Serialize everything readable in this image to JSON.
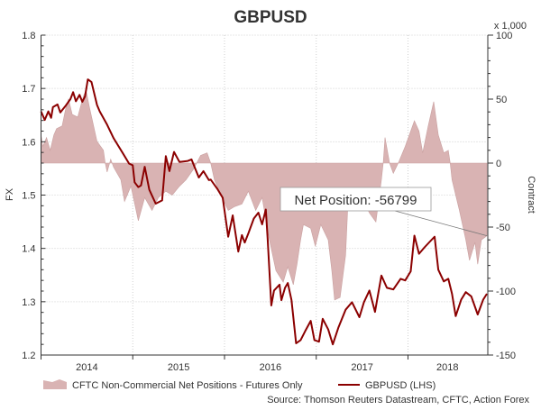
{
  "chart_data": {
    "type": "line",
    "title": "GBPUSD",
    "ylabel": "FX",
    "y2label": "Contract",
    "y2_unit": "x 1,000",
    "xlim": [
      2014.0,
      2018.87
    ],
    "ylim": [
      1.2,
      1.8
    ],
    "y2lim": [
      -150,
      100
    ],
    "x_tick_labels": [
      "2014",
      "2015",
      "2016",
      "2017",
      "2018"
    ],
    "x_tick_positions": [
      2014.5,
      2015.5,
      2016.5,
      2017.5,
      2018.43
    ],
    "x_gridlines": [
      2015,
      2016,
      2017,
      2018
    ],
    "y_ticks": [
      1.2,
      1.3,
      1.4,
      1.5,
      1.6,
      1.7,
      1.8
    ],
    "y_tick_labels": [
      "1.2",
      "1.3",
      "1.4",
      "1.5",
      "1.6",
      "1.7",
      "1.8"
    ],
    "y2_ticks": [
      -150,
      -100,
      -50,
      0,
      50,
      100
    ],
    "y2_tick_labels": [
      "-150",
      "-100",
      "-50",
      "0",
      "50",
      "100"
    ],
    "grid": true,
    "legend_placement": "bottom",
    "series": [
      {
        "name": "CFTC Non-Commercial Net Positions - Futures Only",
        "type": "area",
        "axis": "right",
        "color": "#d9b3b3",
        "points": [
          [
            2014.0,
            22
          ],
          [
            2014.02,
            13
          ],
          [
            2014.06,
            20
          ],
          [
            2014.1,
            10
          ],
          [
            2014.14,
            22
          ],
          [
            2014.17,
            27
          ],
          [
            2014.23,
            29
          ],
          [
            2014.27,
            43
          ],
          [
            2014.3,
            50
          ],
          [
            2014.34,
            38
          ],
          [
            2014.4,
            36
          ],
          [
            2014.46,
            52
          ],
          [
            2014.49,
            57
          ],
          [
            2014.53,
            43
          ],
          [
            2014.61,
            17
          ],
          [
            2014.68,
            10
          ],
          [
            2014.7,
            0
          ],
          [
            2014.72,
            -7
          ],
          [
            2014.76,
            3
          ],
          [
            2014.79,
            -3
          ],
          [
            2014.87,
            -13
          ],
          [
            2014.91,
            -30
          ],
          [
            2014.98,
            -18
          ],
          [
            2015.06,
            -45
          ],
          [
            2015.13,
            -27
          ],
          [
            2015.21,
            -37
          ],
          [
            2015.28,
            -27
          ],
          [
            2015.36,
            -22
          ],
          [
            2015.43,
            -25
          ],
          [
            2015.51,
            -18
          ],
          [
            2015.58,
            -13
          ],
          [
            2015.66,
            -5
          ],
          [
            2015.74,
            6
          ],
          [
            2015.81,
            8
          ],
          [
            2015.85,
            0
          ],
          [
            2015.89,
            -13
          ],
          [
            2015.96,
            -25
          ],
          [
            2016.04,
            -37
          ],
          [
            2016.11,
            -34
          ],
          [
            2016.19,
            -32
          ],
          [
            2016.26,
            -22
          ],
          [
            2016.34,
            -37
          ],
          [
            2016.41,
            -27
          ],
          [
            2016.49,
            -60
          ],
          [
            2016.56,
            -84
          ],
          [
            2016.64,
            -93
          ],
          [
            2016.69,
            -81
          ],
          [
            2016.75,
            -95
          ],
          [
            2016.79,
            -79
          ],
          [
            2016.83,
            -60
          ],
          [
            2016.86,
            -48
          ],
          [
            2016.94,
            -51
          ],
          [
            2016.99,
            -65
          ],
          [
            2017.05,
            -48
          ],
          [
            2017.13,
            -60
          ],
          [
            2017.17,
            -84
          ],
          [
            2017.2,
            -107
          ],
          [
            2017.26,
            -105
          ],
          [
            2017.32,
            -72
          ],
          [
            2017.35,
            -25
          ],
          [
            2017.43,
            -32
          ],
          [
            2017.5,
            -27
          ],
          [
            2017.58,
            -39
          ],
          [
            2017.65,
            -46
          ],
          [
            2017.71,
            -13
          ],
          [
            2017.73,
            0
          ],
          [
            2017.75,
            20
          ],
          [
            2017.8,
            0
          ],
          [
            2017.84,
            -8
          ],
          [
            2017.9,
            1
          ],
          [
            2017.97,
            13
          ],
          [
            2018.07,
            33
          ],
          [
            2018.12,
            25
          ],
          [
            2018.16,
            8
          ],
          [
            2018.22,
            29
          ],
          [
            2018.28,
            48
          ],
          [
            2018.33,
            22
          ],
          [
            2018.39,
            8
          ],
          [
            2018.44,
            10
          ],
          [
            2018.46,
            0
          ],
          [
            2018.48,
            -13
          ],
          [
            2018.56,
            -37
          ],
          [
            2018.63,
            -60
          ],
          [
            2018.67,
            -76
          ],
          [
            2018.73,
            -62
          ],
          [
            2018.76,
            -79
          ],
          [
            2018.8,
            -60
          ],
          [
            2018.86,
            -56.8
          ]
        ]
      },
      {
        "name": "GBPUSD (LHS)",
        "type": "line",
        "axis": "left",
        "color": "#8b0000",
        "points": [
          [
            2014.0,
            1.657
          ],
          [
            2014.04,
            1.641
          ],
          [
            2014.08,
            1.657
          ],
          [
            2014.11,
            1.645
          ],
          [
            2014.13,
            1.665
          ],
          [
            2014.18,
            1.67
          ],
          [
            2014.21,
            1.655
          ],
          [
            2014.27,
            1.668
          ],
          [
            2014.32,
            1.68
          ],
          [
            2014.35,
            1.693
          ],
          [
            2014.38,
            1.676
          ],
          [
            2014.42,
            1.688
          ],
          [
            2014.45,
            1.675
          ],
          [
            2014.48,
            1.685
          ],
          [
            2014.51,
            1.717
          ],
          [
            2014.55,
            1.712
          ],
          [
            2014.61,
            1.669
          ],
          [
            2014.64,
            1.657
          ],
          [
            2014.72,
            1.632
          ],
          [
            2014.79,
            1.607
          ],
          [
            2014.89,
            1.579
          ],
          [
            2014.96,
            1.559
          ],
          [
            2015.0,
            1.556
          ],
          [
            2015.02,
            1.524
          ],
          [
            2015.06,
            1.515
          ],
          [
            2015.09,
            1.518
          ],
          [
            2015.13,
            1.553
          ],
          [
            2015.18,
            1.51
          ],
          [
            2015.25,
            1.484
          ],
          [
            2015.32,
            1.49
          ],
          [
            2015.36,
            1.573
          ],
          [
            2015.4,
            1.545
          ],
          [
            2015.45,
            1.581
          ],
          [
            2015.51,
            1.562
          ],
          [
            2015.6,
            1.564
          ],
          [
            2015.64,
            1.567
          ],
          [
            2015.68,
            1.55
          ],
          [
            2015.72,
            1.533
          ],
          [
            2015.77,
            1.545
          ],
          [
            2015.83,
            1.528
          ],
          [
            2015.85,
            1.529
          ],
          [
            2015.92,
            1.512
          ],
          [
            2015.98,
            1.495
          ],
          [
            2016.04,
            1.422
          ],
          [
            2016.09,
            1.462
          ],
          [
            2016.15,
            1.394
          ],
          [
            2016.19,
            1.425
          ],
          [
            2016.22,
            1.411
          ],
          [
            2016.26,
            1.428
          ],
          [
            2016.32,
            1.456
          ],
          [
            2016.37,
            1.467
          ],
          [
            2016.41,
            1.445
          ],
          [
            2016.45,
            1.473
          ],
          [
            2016.47,
            1.419
          ],
          [
            2016.51,
            1.293
          ],
          [
            2016.54,
            1.321
          ],
          [
            2016.6,
            1.332
          ],
          [
            2016.62,
            1.303
          ],
          [
            2016.66,
            1.326
          ],
          [
            2016.69,
            1.335
          ],
          [
            2016.73,
            1.303
          ],
          [
            2016.78,
            1.222
          ],
          [
            2016.83,
            1.228
          ],
          [
            2016.88,
            1.245
          ],
          [
            2016.94,
            1.264
          ],
          [
            2016.98,
            1.228
          ],
          [
            2017.03,
            1.225
          ],
          [
            2017.07,
            1.268
          ],
          [
            2017.13,
            1.248
          ],
          [
            2017.18,
            1.22
          ],
          [
            2017.24,
            1.251
          ],
          [
            2017.32,
            1.285
          ],
          [
            2017.39,
            1.299
          ],
          [
            2017.47,
            1.271
          ],
          [
            2017.52,
            1.299
          ],
          [
            2017.58,
            1.321
          ],
          [
            2017.64,
            1.281
          ],
          [
            2017.71,
            1.349
          ],
          [
            2017.77,
            1.326
          ],
          [
            2017.84,
            1.323
          ],
          [
            2017.92,
            1.343
          ],
          [
            2017.97,
            1.34
          ],
          [
            2018.03,
            1.357
          ],
          [
            2018.07,
            1.424
          ],
          [
            2018.12,
            1.39
          ],
          [
            2018.18,
            1.402
          ],
          [
            2018.24,
            1.413
          ],
          [
            2018.29,
            1.422
          ],
          [
            2018.33,
            1.36
          ],
          [
            2018.39,
            1.338
          ],
          [
            2018.44,
            1.343
          ],
          [
            2018.48,
            1.315
          ],
          [
            2018.52,
            1.273
          ],
          [
            2018.58,
            1.304
          ],
          [
            2018.63,
            1.318
          ],
          [
            2018.69,
            1.31
          ],
          [
            2018.76,
            1.276
          ],
          [
            2018.82,
            1.304
          ],
          [
            2018.86,
            1.315
          ]
        ]
      }
    ],
    "annotation": {
      "text": "Net Position: -56799",
      "target": [
        2018.86,
        -56.8
      ]
    },
    "source": "Source: Thomson Reuters Datastream, CFTC, Action Forex"
  }
}
